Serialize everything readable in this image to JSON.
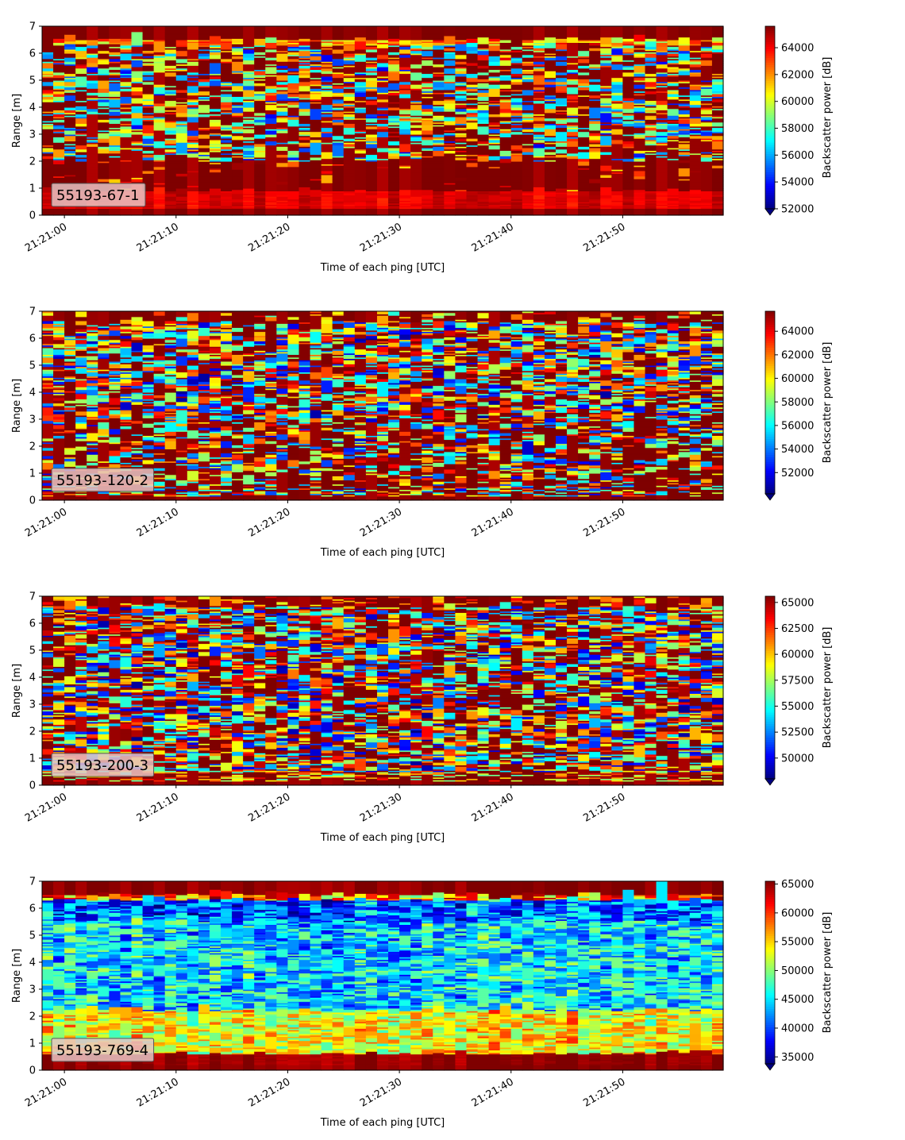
{
  "colormap": "jet",
  "colors": {
    "jet_stops": [
      "#00007f",
      "#0000ff",
      "#007fff",
      "#00ffff",
      "#7fff7f",
      "#ffff00",
      "#ff7f00",
      "#ff0000",
      "#7f0000"
    ],
    "axis": "#000000",
    "label_box_bg": "#e6c4c4",
    "label_box_border": "#555555"
  },
  "chart_data": [
    {
      "type": "heatmap",
      "label": "55193-67-1",
      "xlabel": "Time of each ping [UTC]",
      "ylabel": "Range [m]",
      "x_ticks": [
        "21:21:00",
        "21:21:10",
        "21:21:20",
        "21:21:30",
        "21:21:40",
        "21:21:50"
      ],
      "x_range": [
        "21:20:58",
        "21:21:59"
      ],
      "y_ticks": [
        "0",
        "1",
        "2",
        "3",
        "4",
        "5",
        "6",
        "7"
      ],
      "ylim": [
        0,
        7
      ],
      "colorbar_label": "Backscatter power [dB]",
      "colorbar_ticks": [
        "52000",
        "54000",
        "56000",
        "58000",
        "60000",
        "62000",
        "64000"
      ],
      "colorbar_range": [
        52000,
        65600
      ],
      "colorbar_extend": "min",
      "pattern": "saturated (dark red) below ~2 m; mixed cyan/yellow/blue 2-6.4 m; bright red band near 0.7 m; dark red top 6.4-7 m"
    },
    {
      "type": "heatmap",
      "label": "55193-120-2",
      "xlabel": "Time of each ping [UTC]",
      "ylabel": "Range [m]",
      "x_ticks": [
        "21:21:00",
        "21:21:10",
        "21:21:20",
        "21:21:30",
        "21:21:40",
        "21:21:50"
      ],
      "x_range": [
        "21:20:58",
        "21:21:59"
      ],
      "y_ticks": [
        "0",
        "1",
        "2",
        "3",
        "4",
        "5",
        "6",
        "7"
      ],
      "ylim": [
        0,
        7
      ],
      "colorbar_label": "Backscatter power [dB]",
      "colorbar_ticks": [
        "52000",
        "54000",
        "56000",
        "58000",
        "60000",
        "62000",
        "64000"
      ],
      "colorbar_range": [
        50200,
        65700
      ],
      "colorbar_extend": "min",
      "pattern": "mostly dark red below 3 m with scattered colors; mixed layer 3-6.5 m; dark red top"
    },
    {
      "type": "heatmap",
      "label": "55193-200-3",
      "xlabel": "Time of each ping [UTC]",
      "ylabel": "Range [m]",
      "x_ticks": [
        "21:21:00",
        "21:21:10",
        "21:21:20",
        "21:21:30",
        "21:21:40",
        "21:21:50"
      ],
      "x_range": [
        "21:20:58",
        "21:21:59"
      ],
      "y_ticks": [
        "0",
        "1",
        "2",
        "3",
        "4",
        "5",
        "6",
        "7"
      ],
      "ylim": [
        0,
        7
      ],
      "colorbar_label": "Backscatter power [dB]",
      "colorbar_ticks": [
        "50000",
        "52500",
        "55000",
        "57500",
        "60000",
        "62500",
        "65000"
      ],
      "colorbar_range": [
        48000,
        65600
      ],
      "colorbar_extend": "min",
      "pattern": "broadly mixed colors throughout; dark red bands near bottom and top"
    },
    {
      "type": "heatmap",
      "label": "55193-769-4",
      "xlabel": "Time of each ping [UTC]",
      "ylabel": "Range [m]",
      "x_ticks": [
        "21:21:00",
        "21:21:10",
        "21:21:20",
        "21:21:30",
        "21:21:40",
        "21:21:50"
      ],
      "x_range": [
        "21:20:58",
        "21:21:59"
      ],
      "y_ticks": [
        "0",
        "1",
        "2",
        "3",
        "4",
        "5",
        "6",
        "7"
      ],
      "ylim": [
        0,
        7
      ],
      "colorbar_label": "Backscatter power [dB]",
      "colorbar_ticks": [
        "35000",
        "40000",
        "45000",
        "50000",
        "55000",
        "60000",
        "65000"
      ],
      "colorbar_range": [
        33800,
        65500
      ],
      "colorbar_extend": "min",
      "pattern": "mostly cyan/blue; yellow-orange near 1-2 m; dark red band 0.2-0.6 m and top 6.4-7 m"
    }
  ]
}
